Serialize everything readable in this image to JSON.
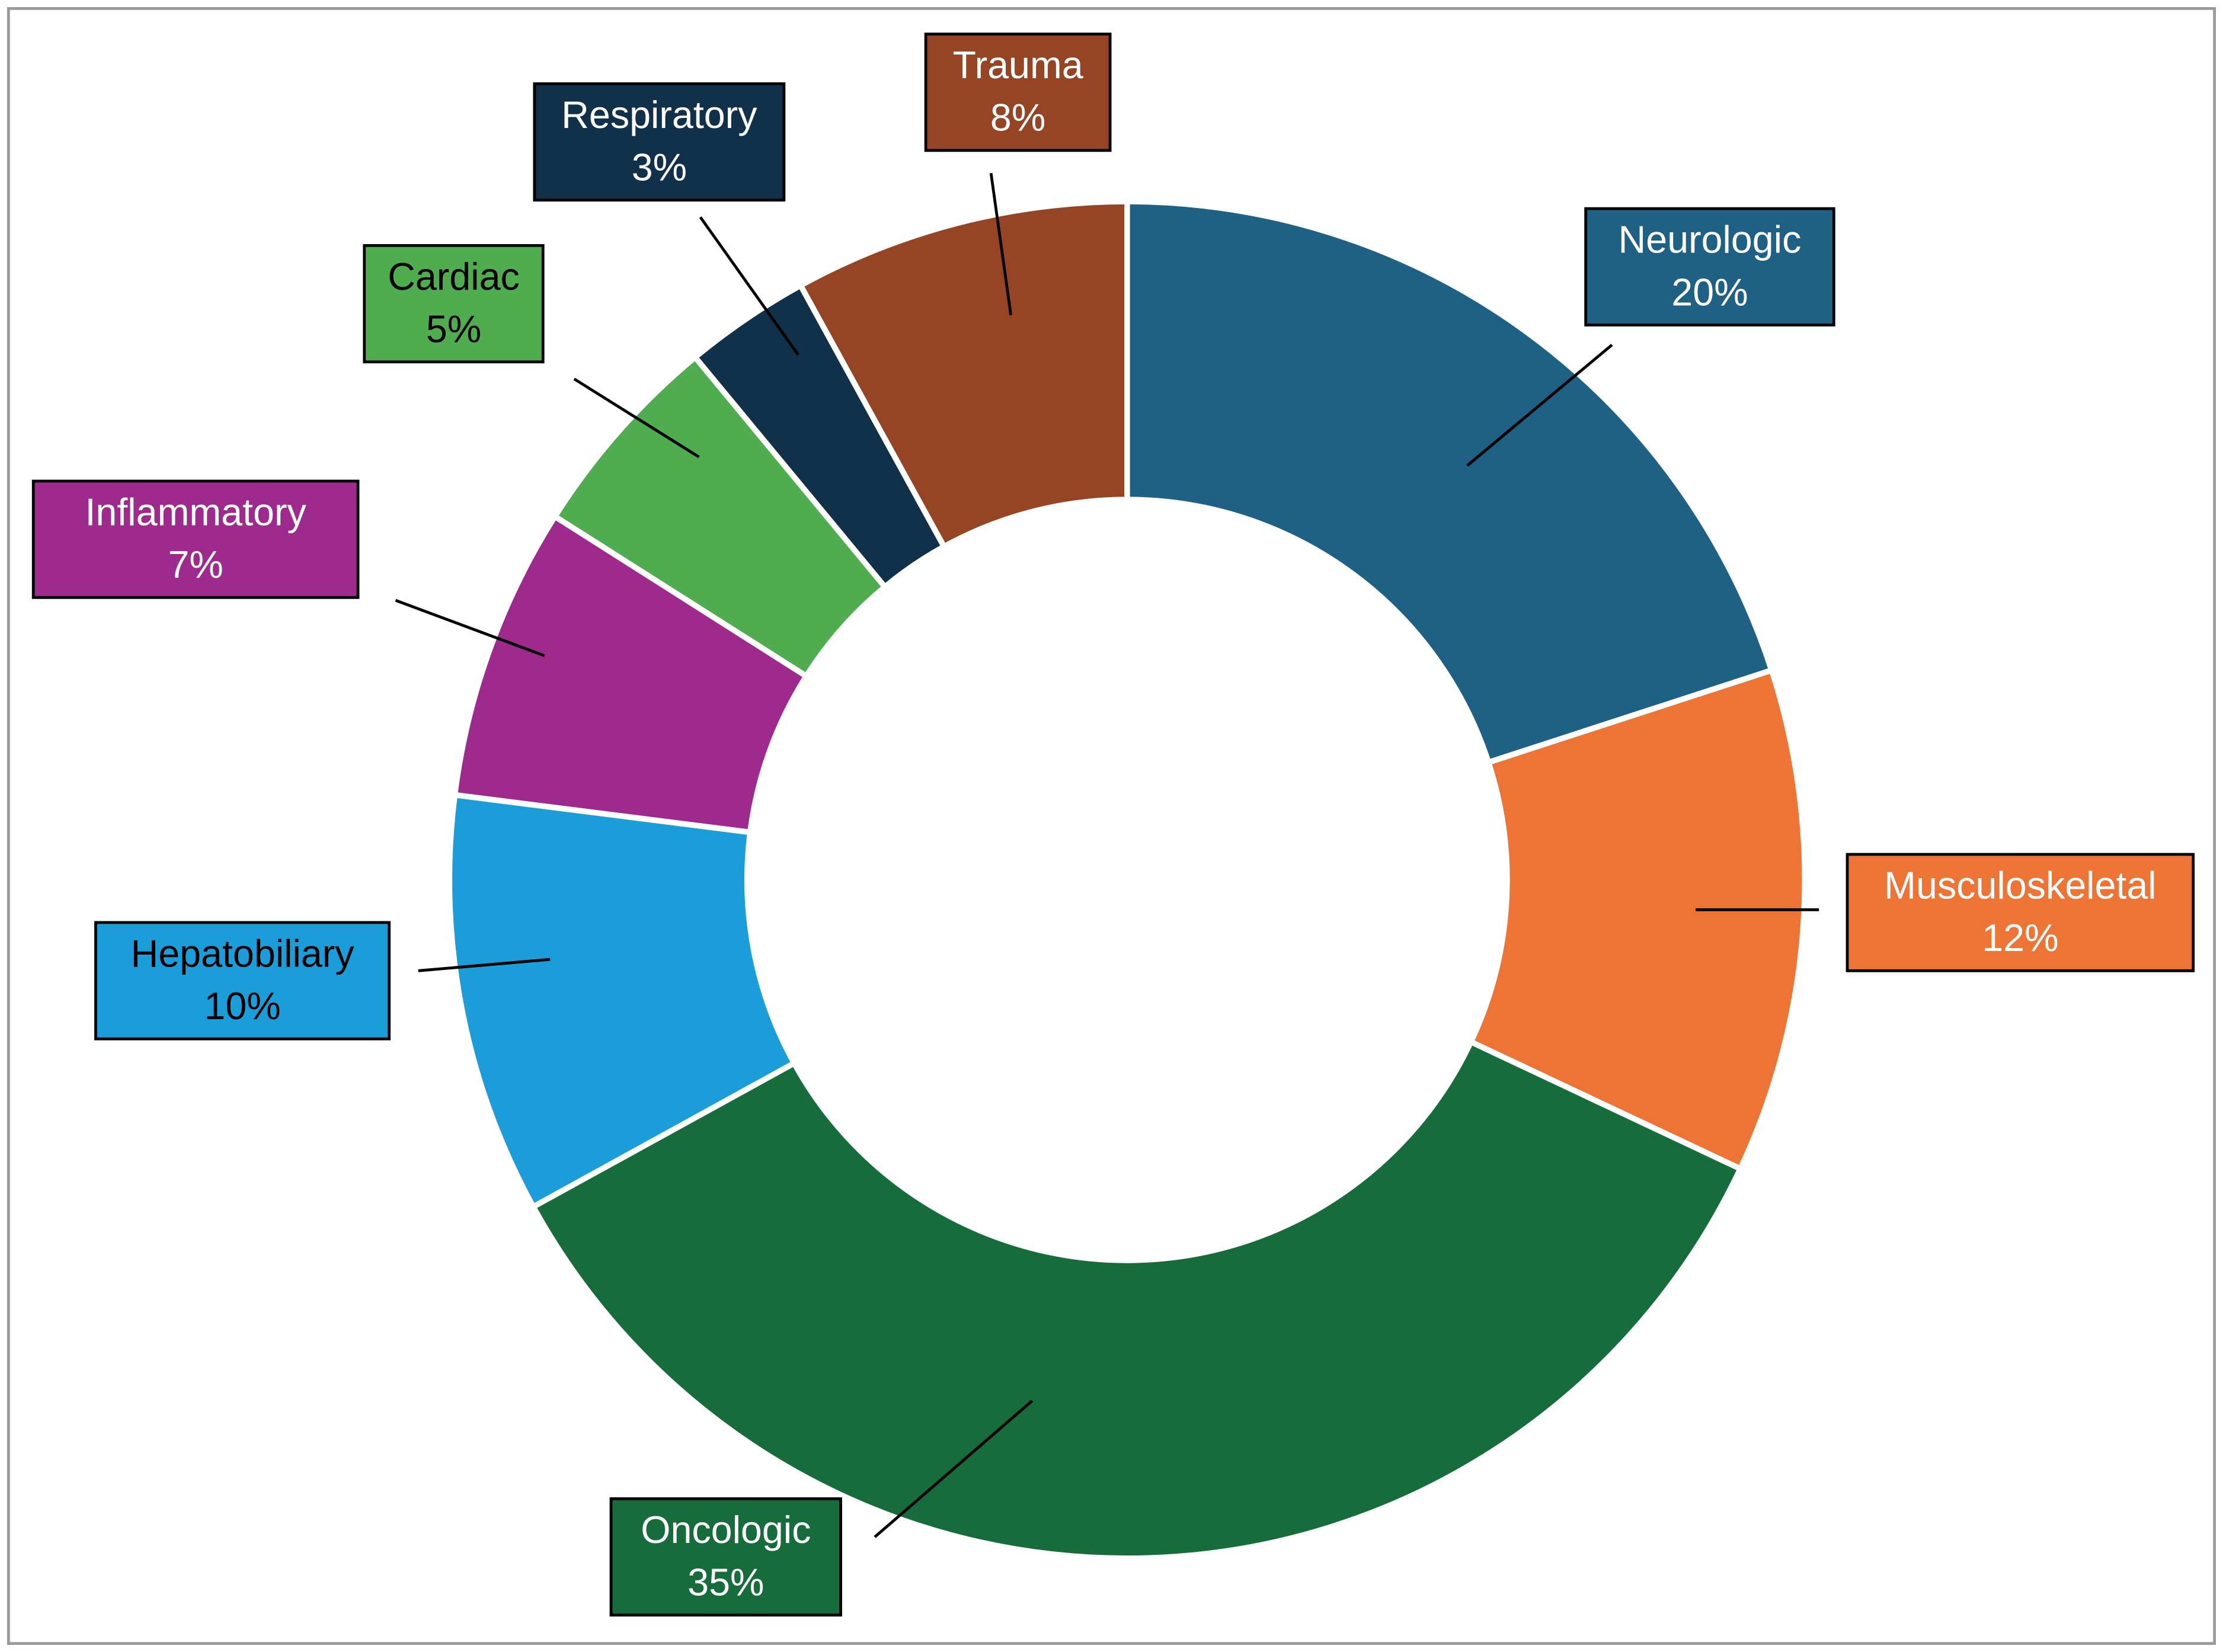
{
  "chart_data": {
    "type": "donut",
    "categories": [
      "Neurologic",
      "Musculoskeletal",
      "Oncologic",
      "Hepatobiliary",
      "Inflammatory",
      "Cardiac",
      "Respiratory",
      "Trauma"
    ],
    "values": [
      20,
      12,
      35,
      10,
      7,
      5,
      3,
      8
    ],
    "value_labels": [
      "20%",
      "12%",
      "35%",
      "10%",
      "7%",
      "5%",
      "3%",
      "8%"
    ],
    "colors": [
      "#1f6085",
      "#ed7434",
      "#176c3b",
      "#1a9dd8",
      "#9e2a8e",
      "#4fac4f",
      "#11304a",
      "#954424"
    ]
  }
}
